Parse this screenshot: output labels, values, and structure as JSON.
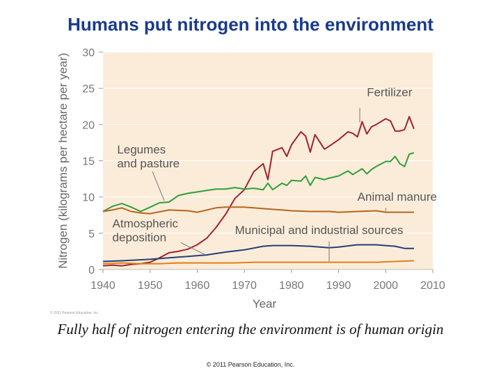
{
  "slide": {
    "title": "Humans put nitrogen into the environment",
    "caption": "Fully half of nitrogen entering the environment is of human origin",
    "footer": "© 2011 Pearson Education, Inc."
  },
  "chart_data": {
    "type": "line",
    "xlabel": "Year",
    "ylabel": "Nitrogen (kilograms per hectare per year)",
    "xlim": [
      1940,
      2010
    ],
    "ylim": [
      0,
      30
    ],
    "x_ticks": [
      1940,
      1950,
      1960,
      1970,
      1980,
      1990,
      2000,
      2010
    ],
    "y_ticks": [
      0,
      5,
      10,
      15,
      20,
      25,
      30
    ],
    "credit": "© 2011 Pearson Education, Inc.",
    "background": "#fbecd9",
    "series": [
      {
        "name": "Fertilizer",
        "color": "#a3212b",
        "x": [
          1940,
          1942,
          1944,
          1946,
          1948,
          1950,
          1952,
          1954,
          1956,
          1958,
          1960,
          1962,
          1964,
          1966,
          1968,
          1970,
          1972,
          1974,
          1975,
          1976,
          1978,
          1979,
          1980,
          1982,
          1983,
          1984,
          1985,
          1987,
          1988,
          1990,
          1992,
          1993,
          1994,
          1995,
          1996,
          1997,
          1998,
          2000,
          2001,
          2002,
          2003,
          2004,
          2005,
          2006
        ],
        "values": [
          0.5,
          0.6,
          0.5,
          0.7,
          0.8,
          1.0,
          1.6,
          2.3,
          2.5,
          2.8,
          3.4,
          4.3,
          5.8,
          7.6,
          9.8,
          11.0,
          13.5,
          14.6,
          12.4,
          16.3,
          16.8,
          15.6,
          17.2,
          19.0,
          18.4,
          16.2,
          18.6,
          16.6,
          17.0,
          17.9,
          19.0,
          18.8,
          18.3,
          20.4,
          18.7,
          19.7,
          20.0,
          20.8,
          20.5,
          19.1,
          19.1,
          19.3,
          21.1,
          19.4
        ]
      },
      {
        "name": "Legumes and pasture",
        "color": "#2f9e3a",
        "x": [
          1940,
          1942,
          1944,
          1946,
          1948,
          1950,
          1952,
          1954,
          1956,
          1958,
          1960,
          1962,
          1964,
          1966,
          1968,
          1970,
          1972,
          1974,
          1975,
          1976,
          1978,
          1979,
          1980,
          1982,
          1983,
          1984,
          1985,
          1987,
          1988,
          1990,
          1992,
          1993,
          1994,
          1995,
          1996,
          1997,
          1998,
          2000,
          2001,
          2002,
          2003,
          2004,
          2005,
          2006
        ],
        "values": [
          8.0,
          8.7,
          9.1,
          8.6,
          8.0,
          8.6,
          9.2,
          9.3,
          10.2,
          10.5,
          10.7,
          10.9,
          11.1,
          11.1,
          11.3,
          11.1,
          11.2,
          11.0,
          11.9,
          11.0,
          11.9,
          11.6,
          12.3,
          12.2,
          12.9,
          11.6,
          12.7,
          12.4,
          12.6,
          12.9,
          13.6,
          13.1,
          13.5,
          13.9,
          13.2,
          13.8,
          14.2,
          14.9,
          14.9,
          15.6,
          14.6,
          14.2,
          15.9,
          16.1
        ]
      },
      {
        "name": "Animal manure",
        "color": "#b5651d",
        "x": [
          1940,
          1942,
          1944,
          1946,
          1948,
          1950,
          1954,
          1958,
          1960,
          1964,
          1966,
          1970,
          1974,
          1978,
          1980,
          1984,
          1988,
          1990,
          1994,
          1998,
          2000,
          2002,
          2004,
          2006
        ],
        "values": [
          8.0,
          8.2,
          8.5,
          8.0,
          7.8,
          7.7,
          8.2,
          8.1,
          7.9,
          8.5,
          8.6,
          8.6,
          8.4,
          8.2,
          8.1,
          8.0,
          8.0,
          7.9,
          8.0,
          8.1,
          7.9,
          7.9,
          7.9,
          7.9
        ]
      },
      {
        "name": "Municipal and industrial sources",
        "color": "#233d7a",
        "x": [
          1940,
          1944,
          1950,
          1954,
          1958,
          1962,
          1966,
          1970,
          1974,
          1976,
          1978,
          1980,
          1984,
          1986,
          1988,
          1990,
          1994,
          1996,
          1998,
          2000,
          2002,
          2004,
          2006
        ],
        "values": [
          1.1,
          1.2,
          1.4,
          1.6,
          1.8,
          2.0,
          2.4,
          2.7,
          3.2,
          3.3,
          3.3,
          3.3,
          3.2,
          3.1,
          3.0,
          3.1,
          3.4,
          3.4,
          3.4,
          3.3,
          3.2,
          2.9,
          2.9
        ]
      },
      {
        "name": "Atmospheric deposition",
        "color": "#e07f1c",
        "x": [
          1940,
          1944,
          1948,
          1952,
          1956,
          1960,
          1964,
          1968,
          1972,
          1976,
          1980,
          1984,
          1988,
          1990,
          1994,
          1998,
          2002,
          2006
        ],
        "values": [
          0.8,
          0.9,
          0.8,
          0.8,
          0.9,
          0.9,
          0.9,
          0.9,
          1.0,
          1.0,
          1.0,
          1.0,
          1.0,
          1.0,
          1.0,
          1.0,
          1.1,
          1.2
        ]
      }
    ],
    "labels": [
      {
        "lines": [
          "Fertilizer"
        ],
        "color": "#555555",
        "at": [
          1996,
          23.9
        ],
        "leader": [
          [
            1994.5,
            22.3
          ],
          [
            1994.5,
            20.3
          ]
        ]
      },
      {
        "lines": [
          "Legumes",
          "and pasture"
        ],
        "color": "#555555",
        "at": [
          1943,
          16
        ],
        "leader": [
          [
            1950.5,
            13.5
          ],
          [
            1953,
            9.5
          ]
        ]
      },
      {
        "lines": [
          "Animal manure"
        ],
        "color": "#555555",
        "at": [
          1994,
          9.5
        ],
        "leader": [
          [
            2000,
            8.5
          ],
          [
            2000,
            8
          ]
        ]
      },
      {
        "lines": [
          "Atmospheric",
          "deposition"
        ],
        "color": "#555555",
        "at": [
          1942,
          5.8
        ],
        "leader": [
          [
            1956.5,
            3.7
          ],
          [
            1961.5,
            2.1
          ]
        ]
      },
      {
        "lines": [
          "Municipal and industrial sources"
        ],
        "color": "#555555",
        "at": [
          1968,
          4.9
        ],
        "leader": [
          [
            1988,
            3.9
          ],
          [
            1988,
            1.1
          ]
        ]
      }
    ]
  }
}
